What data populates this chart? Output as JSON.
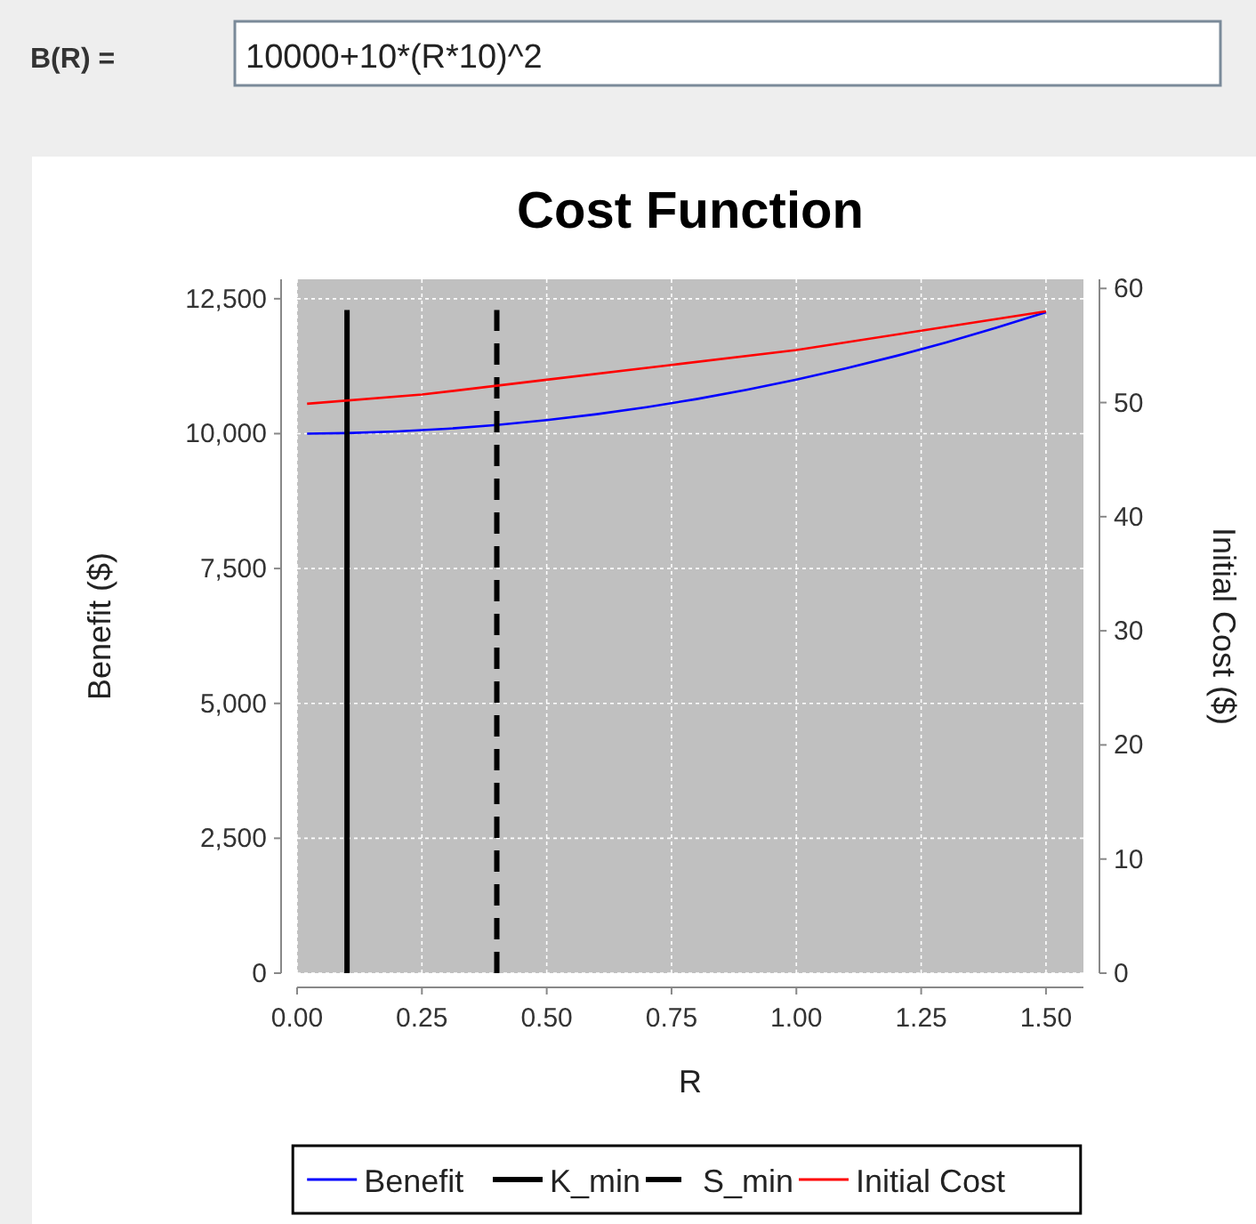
{
  "chart_data": {
    "type": "line",
    "title": "Cost Function",
    "xlabel": "R",
    "ylabel": "Benefit ($)",
    "y2label": "Initial Cost ($)",
    "annotations": [
      "B(R) =",
      "10000+10*(R*10)^2"
    ],
    "series": [
      {
        "name": "Benefit",
        "color": "#0000ff",
        "line_style": "solid",
        "x": [
          0.02,
          0.1,
          0.2,
          0.3,
          0.4,
          0.5,
          0.6,
          0.7,
          0.8,
          0.9,
          1.0,
          1.1,
          1.2,
          1.3,
          1.4,
          1.5
        ],
        "values": [
          10000,
          10010,
          10040,
          10090,
          10160,
          10250,
          10360,
          10490,
          10640,
          10810,
          11000,
          11210,
          11440,
          11690,
          11960,
          12250
        ]
      },
      {
        "name": "K_min",
        "color": "#000000",
        "line_style": "solid",
        "x": [
          0.1,
          0.1
        ],
        "values": [
          0,
          12290
        ]
      },
      {
        "name": "S_min",
        "color": "#000000",
        "line_style": "dashed",
        "x": [
          0.4,
          0.4
        ],
        "values": [
          0,
          12290
        ]
      },
      {
        "name": "Initial Cost",
        "color": "#ff0000",
        "line_style": "solid",
        "axis": "y2",
        "x": [
          0.02,
          0.25,
          0.5,
          0.75,
          1.0,
          1.25,
          1.5
        ],
        "values": [
          49.9,
          50.7,
          52.0,
          53.3,
          54.6,
          56.3,
          58.0
        ]
      }
    ],
    "xlim": [
      0,
      1.575
    ],
    "xticks": [
      {
        "value": 0,
        "label": "0.00"
      },
      {
        "value": 0.25,
        "label": "0.25"
      },
      {
        "value": 0.5,
        "label": "0.50"
      },
      {
        "value": 0.75,
        "label": "0.75"
      },
      {
        "value": 1,
        "label": "1.00"
      },
      {
        "value": 1.25,
        "label": "1.25"
      },
      {
        "value": 1.5,
        "label": "1.50"
      }
    ],
    "ylim": [
      0,
      12860
    ],
    "yticks": [
      0,
      {
        "value": 2500,
        "label": "2,500"
      },
      {
        "value": 5000,
        "label": "5,000"
      },
      {
        "value": 7500,
        "label": "7,500"
      },
      {
        "value": 10000,
        "label": "10,000"
      },
      {
        "value": 12500,
        "label": "12,500"
      }
    ],
    "y2lim": [
      0,
      60.8
    ],
    "y2ticks": [
      0,
      10,
      20,
      30,
      40,
      50,
      60
    ],
    "grid": true,
    "legend": "bottom"
  }
}
